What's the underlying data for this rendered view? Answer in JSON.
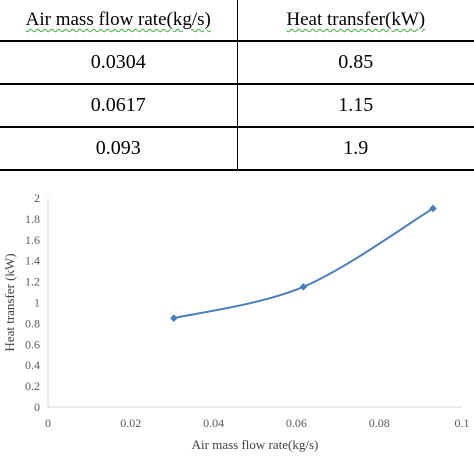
{
  "table": {
    "headers": [
      "Air mass flow rate(kg/s)",
      "Heat transfer(kW)"
    ],
    "rows": [
      [
        "0.0304",
        "0.85"
      ],
      [
        "0.0617",
        "1.15"
      ],
      [
        "0.093",
        "1.9"
      ]
    ]
  },
  "chart_data": {
    "type": "line",
    "xlabel": "Air mass flow rate(kg/s)",
    "ylabel": "Heat transfer (kW)",
    "xlim": [
      0,
      0.1
    ],
    "ylim": [
      0,
      2
    ],
    "x_ticks": [
      "0",
      "0.02",
      "0.04",
      "0.06",
      "0.08",
      "0.1"
    ],
    "y_ticks": [
      "0",
      "0.2",
      "0.4",
      "0.6",
      "0.8",
      "1",
      "1.2",
      "1.4",
      "1.6",
      "1.8",
      "2"
    ],
    "grid": false,
    "series": [
      {
        "x": [
          0.0304,
          0.0617,
          0.093
        ],
        "y": [
          0.85,
          1.15,
          1.9
        ],
        "color": "#4a7ebb"
      }
    ]
  }
}
